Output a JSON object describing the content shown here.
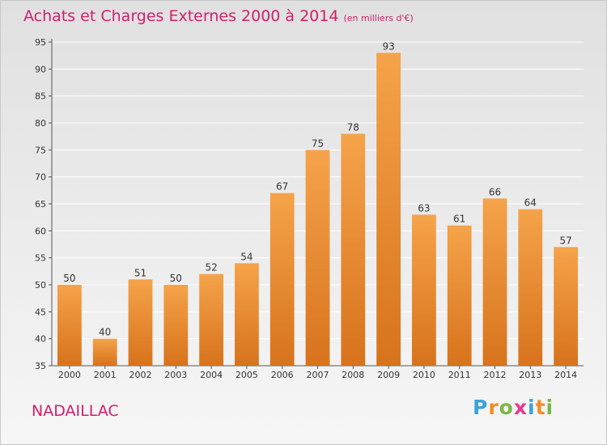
{
  "header": {
    "title": "Achats et Charges Externes 2000 à 2014",
    "unit": "(en milliers d'€)"
  },
  "footer": {
    "town": "NADAILLAC",
    "logo_letters": [
      "P",
      "r",
      "o",
      "x",
      "i",
      "t",
      "i"
    ]
  },
  "colors": {
    "title": "#d0206e",
    "bar_top": "#f5a34a",
    "bar_bottom": "#d7731c",
    "grid": "#ffffff",
    "logo": [
      "#3aa3d8",
      "#f28c28",
      "#7ab648",
      "#e8368f",
      "#3aa3d8",
      "#f28c28",
      "#7ab648"
    ]
  },
  "chart_data": {
    "type": "bar",
    "title": "Achats et Charges Externes 2000 à 2014",
    "categories": [
      "2000",
      "2001",
      "2002",
      "2003",
      "2004",
      "2005",
      "2006",
      "2007",
      "2008",
      "2009",
      "2010",
      "2011",
      "2012",
      "2013",
      "2014"
    ],
    "values": [
      50,
      40,
      51,
      50,
      52,
      54,
      67,
      75,
      78,
      93,
      63,
      61,
      66,
      64,
      57
    ],
    "ylim": [
      35,
      95
    ],
    "yticks": [
      35,
      40,
      45,
      50,
      55,
      60,
      65,
      70,
      75,
      80,
      85,
      90,
      95
    ],
    "grid": true
  }
}
